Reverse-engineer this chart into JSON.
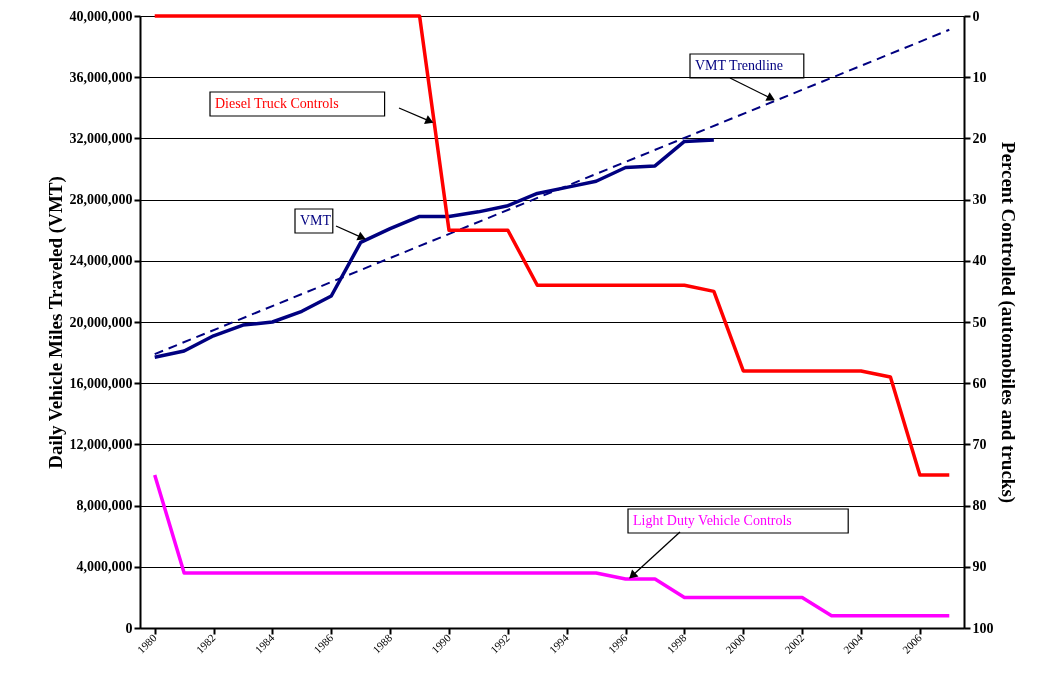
{
  "chart_data": {
    "type": "line",
    "ylabel": "Daily Vehicle Miles Traveled (VMT)",
    "y2label": "Percent Controlled (automobiles and trucks)",
    "x": [
      1980,
      1981,
      1982,
      1983,
      1984,
      1985,
      1986,
      1987,
      1988,
      1989,
      1990,
      1991,
      1992,
      1993,
      1994,
      1995,
      1996,
      1997,
      1998,
      1999,
      2000,
      2001,
      2002,
      2003,
      2004,
      2005,
      2006,
      2007
    ],
    "xlim": [
      1979.5,
      2007.5
    ],
    "xticks": [
      1980,
      1982,
      1984,
      1986,
      1988,
      1990,
      1992,
      1994,
      1996,
      1998,
      2000,
      2002,
      2004,
      2006
    ],
    "ylim": [
      0,
      40000000
    ],
    "yticks": [
      0,
      {
        "value": 4000000,
        "label": "4,000,000"
      },
      {
        "value": 8000000,
        "label": "8,000,000"
      },
      {
        "value": 12000000,
        "label": "12,000,000"
      },
      {
        "value": 16000000,
        "label": "16,000,000"
      },
      {
        "value": 20000000,
        "label": "20,000,000"
      },
      {
        "value": 24000000,
        "label": "24,000,000"
      },
      {
        "value": 28000000,
        "label": "28,000,000"
      },
      {
        "value": 32000000,
        "label": "32,000,000"
      },
      {
        "value": 36000000,
        "label": "36,000,000"
      },
      {
        "value": 40000000,
        "label": "40,000,000"
      }
    ],
    "y2lim": [
      100,
      0
    ],
    "y2ticks": [
      0,
      10,
      20,
      30,
      40,
      50,
      60,
      70,
      80,
      90,
      100
    ],
    "grid": "y",
    "series": [
      {
        "name": "VMT",
        "color": "#000080",
        "values": [
          17700000,
          18100000,
          19100000,
          19800000,
          20000000,
          20700000,
          21700000,
          25200000,
          26100000,
          26900000,
          26900000,
          27200000,
          27600000,
          28400000,
          28800000,
          29200000,
          30100000,
          30200000,
          31800000,
          31900000,
          null,
          null,
          null,
          null,
          null,
          null,
          null,
          null
        ]
      },
      {
        "name": "VMT Trendline",
        "type": "line",
        "line_style": "dashed",
        "color": "#000080",
        "x": [
          1980,
          2007
        ],
        "values": [
          17900000,
          39100000
        ]
      },
      {
        "name": "Diesel Truck Controls",
        "axis": "y2",
        "color": "#ff0000",
        "values": [
          0,
          0,
          0,
          0,
          0,
          0,
          0,
          0,
          0,
          0,
          35,
          35,
          35,
          44,
          44,
          44,
          44,
          44,
          44,
          45,
          58,
          58,
          58,
          58,
          58,
          59,
          75,
          75
        ]
      },
      {
        "name": "Light Duty Vehicle Controls",
        "axis": "y2",
        "color": "#ff00ff",
        "values": [
          75,
          91,
          91,
          91,
          91,
          91,
          91,
          91,
          91,
          91,
          91,
          91,
          91,
          91,
          91,
          91,
          92,
          92,
          95,
          95,
          95,
          95,
          95,
          98,
          98,
          98,
          98,
          98
        ]
      }
    ]
  }
}
